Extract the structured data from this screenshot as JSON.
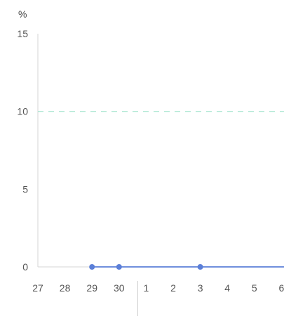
{
  "chart_data": {
    "type": "line",
    "y_unit": "%",
    "ylim": [
      0,
      15
    ],
    "y_ticks": [
      "0",
      "5",
      "10",
      "15"
    ],
    "x_ticks": [
      "27",
      "28",
      "29",
      "30",
      "1",
      "2",
      "3",
      "4",
      "5",
      "6"
    ],
    "reference_line": {
      "value": 10,
      "style": "dashed",
      "color": "#a8e6cf"
    },
    "series": [
      {
        "color": "#5b7fd8",
        "points": [
          {
            "x": "29",
            "y": 0
          },
          {
            "x": "30",
            "y": 0
          },
          {
            "x": "3",
            "y": 0
          }
        ],
        "line_extends_to_end": true
      }
    ],
    "grid": false,
    "month_separator_before": "1"
  }
}
